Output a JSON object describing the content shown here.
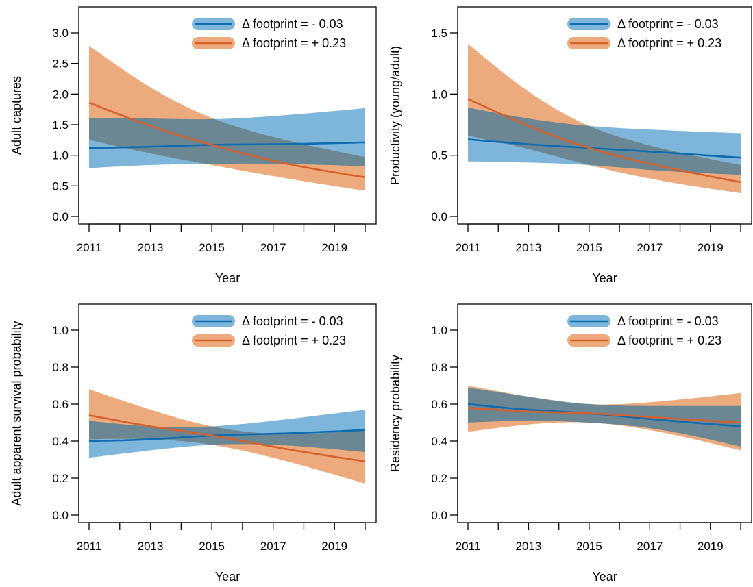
{
  "colors": {
    "blue_line": "#0E6CB0",
    "blue_band": "#7DB6DA",
    "orange_line": "#D8602A",
    "orange_band": "#EDAA7C",
    "overlap_band": "#6C8794"
  },
  "legend_labels": [
    "Δ footprint = - 0.03",
    "Δ footprint = + 0.23"
  ],
  "chart_data": [
    {
      "type": "line",
      "panel": "top-left",
      "xlabel": "Year",
      "ylabel": "Adult captures",
      "xlim": [
        2011,
        2020
      ],
      "ylim": [
        0,
        3.0
      ],
      "xticks": [
        2011,
        2012,
        2013,
        2014,
        2015,
        2016,
        2017,
        2018,
        2019,
        2020
      ],
      "xtick_labels": [
        "2011",
        "",
        "2013",
        "",
        "2015",
        "",
        "2017",
        "",
        "2019",
        ""
      ],
      "yticks": [
        0,
        0.5,
        1.0,
        1.5,
        2.0,
        2.5,
        3.0
      ],
      "ytick_labels": [
        "0.0",
        "0.5",
        "1.0",
        "1.5",
        "2.0",
        "2.5",
        "3.0"
      ],
      "legend_position": "top-right",
      "series": [
        {
          "name": "Δ footprint = - 0.03",
          "color": "blue",
          "x": [
            2011,
            2013,
            2015,
            2017,
            2020
          ],
          "y": [
            1.12,
            1.14,
            1.17,
            1.18,
            1.21
          ],
          "lower": [
            0.79,
            0.84,
            0.86,
            0.86,
            0.82
          ],
          "upper": [
            1.61,
            1.6,
            1.59,
            1.64,
            1.77
          ]
        },
        {
          "name": "Δ footprint = + 0.23",
          "color": "orange",
          "x": [
            2011,
            2013,
            2015,
            2017,
            2020
          ],
          "y": [
            1.86,
            1.48,
            1.17,
            0.91,
            0.64
          ],
          "lower": [
            1.25,
            1.03,
            0.84,
            0.66,
            0.42
          ],
          "upper": [
            2.79,
            2.11,
            1.61,
            1.3,
            0.97
          ]
        }
      ]
    },
    {
      "type": "line",
      "panel": "top-right",
      "xlabel": "Year",
      "ylabel": "Productivity (young/adult)",
      "xlim": [
        2011,
        2020
      ],
      "ylim": [
        0,
        1.5
      ],
      "xticks": [
        2011,
        2012,
        2013,
        2014,
        2015,
        2016,
        2017,
        2018,
        2019,
        2020
      ],
      "xtick_labels": [
        "2011",
        "",
        "2013",
        "",
        "2015",
        "",
        "2017",
        "",
        "2019",
        ""
      ],
      "yticks": [
        0,
        0.5,
        1.0,
        1.5
      ],
      "ytick_labels": [
        "0.0",
        "0.5",
        "1.0",
        "1.5"
      ],
      "legend_position": "top-right",
      "series": [
        {
          "name": "Δ footprint = - 0.03",
          "color": "blue",
          "x": [
            2011,
            2013,
            2015,
            2017,
            2020
          ],
          "y": [
            0.63,
            0.59,
            0.56,
            0.53,
            0.48
          ],
          "lower": [
            0.45,
            0.44,
            0.42,
            0.38,
            0.34
          ],
          "upper": [
            0.89,
            0.8,
            0.74,
            0.71,
            0.68
          ]
        },
        {
          "name": "Δ footprint = + 0.23",
          "color": "orange",
          "x": [
            2011,
            2013,
            2015,
            2017,
            2020
          ],
          "y": [
            0.96,
            0.74,
            0.56,
            0.43,
            0.28
          ],
          "lower": [
            0.66,
            0.55,
            0.42,
            0.31,
            0.19
          ],
          "upper": [
            1.41,
            1.02,
            0.74,
            0.58,
            0.42
          ]
        }
      ]
    },
    {
      "type": "line",
      "panel": "bottom-left",
      "xlabel": "Year",
      "ylabel": "Adult apparent survival probability",
      "xlim": [
        2011,
        2020
      ],
      "ylim": [
        0,
        1.0
      ],
      "xticks": [
        2011,
        2012,
        2013,
        2014,
        2015,
        2016,
        2017,
        2018,
        2019,
        2020
      ],
      "xtick_labels": [
        "2011",
        "",
        "2013",
        "",
        "2015",
        "",
        "2017",
        "",
        "2019",
        ""
      ],
      "yticks": [
        0,
        0.2,
        0.4,
        0.6,
        0.8,
        1.0
      ],
      "ytick_labels": [
        "0.0",
        "0.2",
        "0.4",
        "0.6",
        "0.8",
        "1.0"
      ],
      "legend_position": "top-right",
      "series": [
        {
          "name": "Δ footprint = - 0.03",
          "color": "blue",
          "x": [
            2011,
            2013,
            2015,
            2017,
            2020
          ],
          "y": [
            0.4,
            0.41,
            0.43,
            0.44,
            0.46
          ],
          "lower": [
            0.31,
            0.35,
            0.38,
            0.38,
            0.34
          ],
          "upper": [
            0.51,
            0.48,
            0.48,
            0.51,
            0.57
          ]
        },
        {
          "name": "Δ footprint = + 0.23",
          "color": "orange",
          "x": [
            2011,
            2013,
            2015,
            2017,
            2020
          ],
          "y": [
            0.54,
            0.48,
            0.43,
            0.37,
            0.29
          ],
          "lower": [
            0.41,
            0.41,
            0.38,
            0.31,
            0.17
          ],
          "upper": [
            0.68,
            0.57,
            0.48,
            0.44,
            0.46
          ]
        }
      ]
    },
    {
      "type": "line",
      "panel": "bottom-right",
      "xlabel": "Year",
      "ylabel": "Residency probability",
      "xlim": [
        2011,
        2020
      ],
      "ylim": [
        0,
        1.0
      ],
      "xticks": [
        2011,
        2012,
        2013,
        2014,
        2015,
        2016,
        2017,
        2018,
        2019,
        2020
      ],
      "xtick_labels": [
        "2011",
        "",
        "2013",
        "",
        "2015",
        "",
        "2017",
        "",
        "2019",
        ""
      ],
      "yticks": [
        0,
        0.2,
        0.4,
        0.6,
        0.8,
        1.0
      ],
      "ytick_labels": [
        "0.0",
        "0.2",
        "0.4",
        "0.6",
        "0.8",
        "1.0"
      ],
      "legend_position": "top-right",
      "series": [
        {
          "name": "Δ footprint = - 0.03",
          "color": "blue",
          "x": [
            2011,
            2013,
            2015,
            2017,
            2020
          ],
          "y": [
            0.6,
            0.57,
            0.55,
            0.52,
            0.48
          ],
          "lower": [
            0.5,
            0.51,
            0.5,
            0.47,
            0.37
          ],
          "upper": [
            0.69,
            0.64,
            0.6,
            0.59,
            0.59
          ]
        },
        {
          "name": "Δ footprint = + 0.23",
          "color": "orange",
          "x": [
            2011,
            2013,
            2015,
            2017,
            2020
          ],
          "y": [
            0.58,
            0.56,
            0.55,
            0.53,
            0.5
          ],
          "lower": [
            0.45,
            0.49,
            0.5,
            0.46,
            0.35
          ],
          "upper": [
            0.7,
            0.64,
            0.6,
            0.61,
            0.66
          ]
        }
      ]
    }
  ]
}
